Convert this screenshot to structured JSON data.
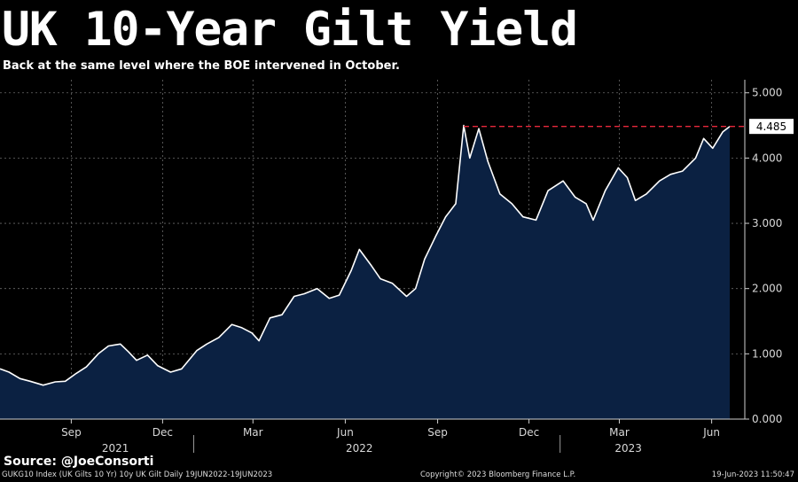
{
  "footer": {
    "source": "Source: @JoeConsorti",
    "index_info": "GUKG10 Index (UK Gilts 10 Yr) 10y UK Gilt  Daily 19JUN2022-19JUN2023",
    "copyright": "Copyright© 2023 Bloomberg Finance L.P.",
    "timestamp": "19-Jun-2023 11:50:47"
  },
  "colors": {
    "background": "#000000",
    "line": "#ffffff",
    "area_fill": "#0b2142",
    "reference_line": "#e8283c",
    "grid": "#6a6a6a"
  },
  "chart_data": {
    "type": "area",
    "title": "UK 10-Year Gilt Yield",
    "subtitle": "Back at the same level where the BOE intervened in October.",
    "x_range": [
      "2021-06-22",
      "2023-06-19"
    ],
    "ylim": [
      0,
      5.2
    ],
    "y_ticks": [
      0.0,
      1.0,
      2.0,
      3.0,
      4.0,
      5.0
    ],
    "y_tick_labels": [
      "0.000",
      "1.000",
      "2.000",
      "3.000",
      "4.000",
      "5.000"
    ],
    "x_month_ticks": [
      {
        "label": "Sep",
        "date": "2021-09-01"
      },
      {
        "label": "Dec",
        "date": "2021-12-01"
      },
      {
        "label": "Mar",
        "date": "2022-03-01"
      },
      {
        "label": "Jun",
        "date": "2022-06-01"
      },
      {
        "label": "Sep",
        "date": "2022-09-01"
      },
      {
        "label": "Dec",
        "date": "2022-12-01"
      },
      {
        "label": "Mar",
        "date": "2023-03-01"
      },
      {
        "label": "Jun",
        "date": "2023-06-01"
      }
    ],
    "x_year_labels": [
      {
        "label": "2021",
        "date": "2021-10-15"
      },
      {
        "label": "2022",
        "date": "2022-06-15"
      },
      {
        "label": "2023",
        "date": "2023-03-10"
      }
    ],
    "x_year_separators": [
      "2022-01-01",
      "2023-01-01"
    ],
    "grid": true,
    "last_value": 4.485,
    "last_value_label": "4.485",
    "reference_line": {
      "y": 4.485,
      "from": "2022-09-27",
      "to": "2023-06-19",
      "style": "dashed"
    },
    "series": [
      {
        "points": [
          [
            "2021-06-22",
            0.77
          ],
          [
            "2021-07-01",
            0.72
          ],
          [
            "2021-07-12",
            0.62
          ],
          [
            "2021-07-22",
            0.58
          ],
          [
            "2021-08-04",
            0.52
          ],
          [
            "2021-08-16",
            0.57
          ],
          [
            "2021-08-26",
            0.58
          ],
          [
            "2021-09-06",
            0.7
          ],
          [
            "2021-09-16",
            0.8
          ],
          [
            "2021-09-28",
            1.0
          ],
          [
            "2021-10-08",
            1.12
          ],
          [
            "2021-10-20",
            1.15
          ],
          [
            "2021-10-28",
            1.03
          ],
          [
            "2021-11-05",
            0.9
          ],
          [
            "2021-11-16",
            0.98
          ],
          [
            "2021-11-26",
            0.82
          ],
          [
            "2021-12-09",
            0.72
          ],
          [
            "2021-12-20",
            0.77
          ],
          [
            "2022-01-04",
            1.05
          ],
          [
            "2022-01-14",
            1.15
          ],
          [
            "2022-01-26",
            1.25
          ],
          [
            "2022-02-08",
            1.45
          ],
          [
            "2022-02-18",
            1.4
          ],
          [
            "2022-02-28",
            1.32
          ],
          [
            "2022-03-07",
            1.2
          ],
          [
            "2022-03-18",
            1.55
          ],
          [
            "2022-03-30",
            1.6
          ],
          [
            "2022-04-11",
            1.88
          ],
          [
            "2022-04-21",
            1.92
          ],
          [
            "2022-05-04",
            2.0
          ],
          [
            "2022-05-16",
            1.85
          ],
          [
            "2022-05-26",
            1.9
          ],
          [
            "2022-06-07",
            2.28
          ],
          [
            "2022-06-15",
            2.6
          ],
          [
            "2022-06-27",
            2.35
          ],
          [
            "2022-07-06",
            2.15
          ],
          [
            "2022-07-18",
            2.08
          ],
          [
            "2022-08-01",
            1.88
          ],
          [
            "2022-08-10",
            2.0
          ],
          [
            "2022-08-19",
            2.45
          ],
          [
            "2022-08-30",
            2.8
          ],
          [
            "2022-09-09",
            3.1
          ],
          [
            "2022-09-19",
            3.3
          ],
          [
            "2022-09-27",
            4.5
          ],
          [
            "2022-10-03",
            4.0
          ],
          [
            "2022-10-12",
            4.45
          ],
          [
            "2022-10-21",
            3.95
          ],
          [
            "2022-11-02",
            3.45
          ],
          [
            "2022-11-14",
            3.3
          ],
          [
            "2022-11-25",
            3.1
          ],
          [
            "2022-12-08",
            3.05
          ],
          [
            "2022-12-20",
            3.5
          ],
          [
            "2023-01-04",
            3.65
          ],
          [
            "2023-01-16",
            3.4
          ],
          [
            "2023-01-27",
            3.3
          ],
          [
            "2023-02-03",
            3.05
          ],
          [
            "2023-02-15",
            3.5
          ],
          [
            "2023-02-28",
            3.85
          ],
          [
            "2023-03-09",
            3.7
          ],
          [
            "2023-03-17",
            3.35
          ],
          [
            "2023-03-28",
            3.45
          ],
          [
            "2023-04-10",
            3.65
          ],
          [
            "2023-04-21",
            3.75
          ],
          [
            "2023-05-03",
            3.8
          ],
          [
            "2023-05-16",
            4.0
          ],
          [
            "2023-05-24",
            4.3
          ],
          [
            "2023-06-02",
            4.15
          ],
          [
            "2023-06-12",
            4.4
          ],
          [
            "2023-06-19",
            4.485
          ]
        ]
      }
    ]
  }
}
